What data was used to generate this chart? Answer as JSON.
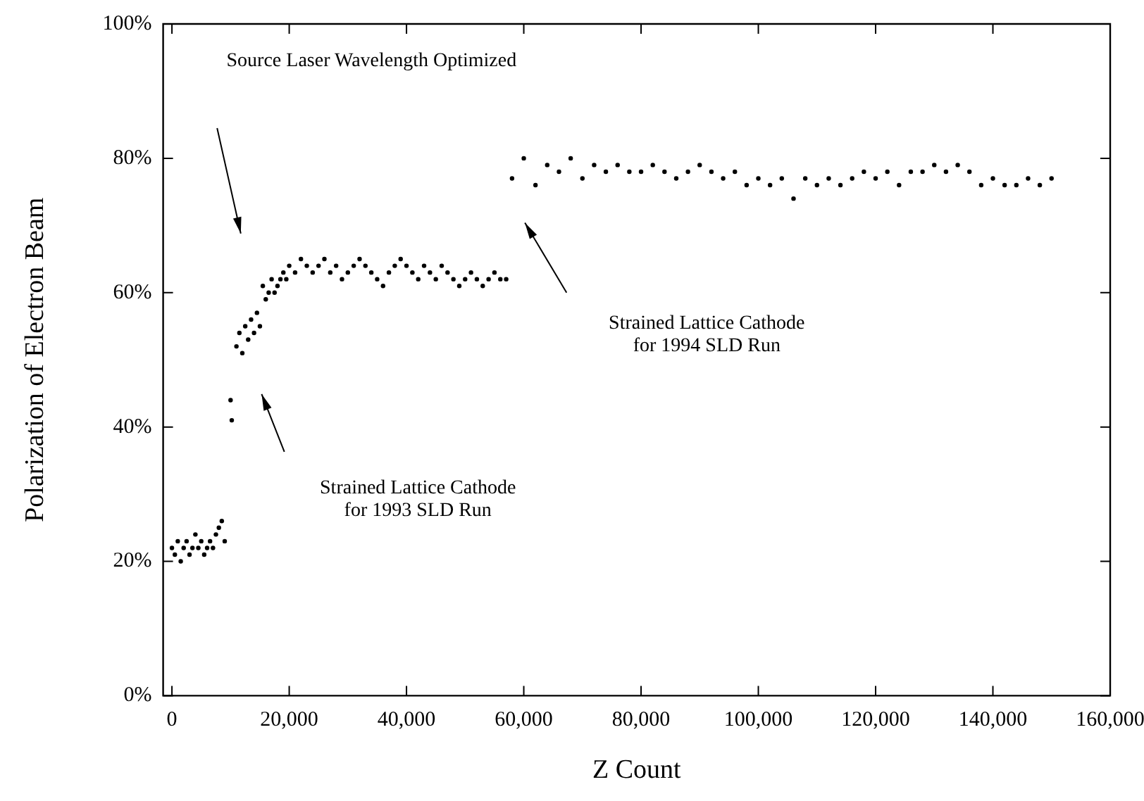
{
  "chart_data": {
    "type": "scatter",
    "xlabel": "Z Count",
    "ylabel": "Polarization of Electron Beam",
    "series": [
      {
        "color": "#000000",
        "x": [
          0,
          500,
          1000,
          1500,
          2000,
          2500,
          3000,
          3500,
          4000,
          4500,
          5000,
          5500,
          6000,
          6500,
          7000,
          7500,
          8000,
          8500,
          9000,
          10000,
          10200,
          11000,
          11500,
          12000,
          12500,
          13000,
          13500,
          14000,
          14500,
          15000,
          15500,
          16000,
          16500,
          17000,
          17500,
          18000,
          18500,
          19000,
          19500,
          20000,
          21000,
          22000,
          23000,
          24000,
          25000,
          26000,
          27000,
          28000,
          29000,
          30000,
          31000,
          32000,
          33000,
          34000,
          35000,
          36000,
          37000,
          38000,
          39000,
          40000,
          41000,
          42000,
          43000,
          44000,
          45000,
          46000,
          47000,
          48000,
          49000,
          50000,
          51000,
          52000,
          53000,
          54000,
          55000,
          56000,
          57000,
          58000,
          60000,
          62000,
          64000,
          66000,
          68000,
          70000,
          72000,
          74000,
          76000,
          78000,
          80000,
          82000,
          84000,
          86000,
          88000,
          90000,
          92000,
          94000,
          96000,
          98000,
          100000,
          102000,
          104000,
          106000,
          108000,
          110000,
          112000,
          114000,
          116000,
          118000,
          120000,
          122000,
          124000,
          126000,
          128000,
          130000,
          132000,
          134000,
          136000,
          138000,
          140000,
          142000,
          144000,
          146000,
          148000,
          150000
        ],
        "values": [
          22,
          21,
          23,
          20,
          22,
          23,
          21,
          22,
          24,
          22,
          23,
          21,
          22,
          23,
          22,
          24,
          25,
          26,
          23,
          44,
          41,
          52,
          54,
          51,
          55,
          53,
          56,
          54,
          57,
          55,
          61,
          59,
          60,
          62,
          60,
          61,
          62,
          63,
          62,
          64,
          63,
          65,
          64,
          63,
          64,
          65,
          63,
          64,
          62,
          63,
          64,
          65,
          64,
          63,
          62,
          61,
          63,
          64,
          65,
          64,
          63,
          62,
          64,
          63,
          62,
          64,
          63,
          62,
          61,
          62,
          63,
          62,
          61,
          62,
          63,
          62,
          62,
          77,
          80,
          76,
          79,
          78,
          80,
          77,
          79,
          78,
          79,
          78,
          78,
          79,
          78,
          77,
          78,
          79,
          78,
          77,
          78,
          76,
          77,
          76,
          77,
          74,
          77,
          76,
          77,
          76,
          77,
          78,
          77,
          78,
          76,
          78,
          78,
          79,
          78,
          79,
          78,
          76,
          77,
          76,
          76,
          77,
          76,
          77
        ]
      }
    ],
    "xlim": [
      -1500,
      160000
    ],
    "ylim": [
      0,
      100
    ],
    "xticks": [
      0,
      {
        "value": 20000,
        "label": "20,000"
      },
      {
        "value": 40000,
        "label": "40,000"
      },
      {
        "value": 60000,
        "label": "60,000"
      },
      {
        "value": 80000,
        "label": "80,000"
      },
      {
        "value": 100000,
        "label": "100,000"
      },
      {
        "value": 120000,
        "label": "120,000"
      },
      {
        "value": 140000,
        "label": "140,000"
      },
      {
        "value": 160000,
        "label": "160,000"
      }
    ],
    "yticks": [
      {
        "value": 0,
        "label": "0%"
      },
      {
        "value": 20,
        "label": "20%"
      },
      {
        "value": 40,
        "label": "40%"
      },
      {
        "value": 60,
        "label": "60%"
      },
      {
        "value": 80,
        "label": "80%"
      },
      {
        "value": 100,
        "label": "100%"
      }
    ],
    "grid": false,
    "legend": false,
    "marker": "circle",
    "annotations": [
      "Source Laser Wavelength Optimized",
      "Strained Lattice Cathode\nfor 1993 SLD Run",
      "Strained Lattice Cathode\nfor 1994 SLD Run"
    ]
  }
}
